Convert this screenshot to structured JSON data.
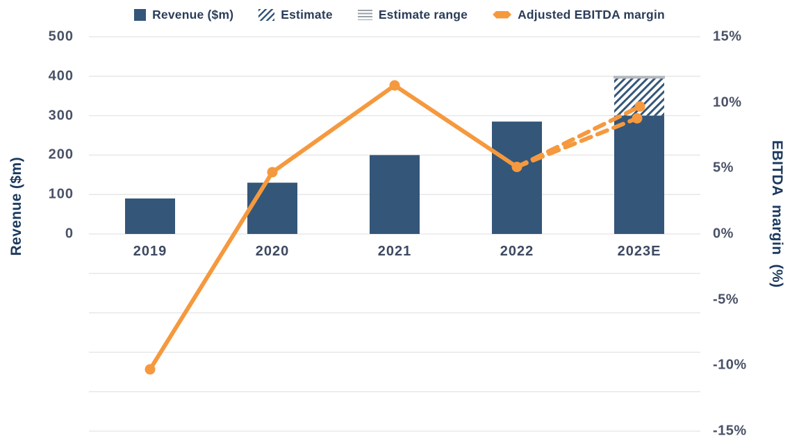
{
  "legend": {
    "items": [
      {
        "label": "Revenue ($m)",
        "swatch": "solid-square",
        "icon": "blue-square-icon"
      },
      {
        "label": "Estimate",
        "swatch": "diagonal-hatch",
        "icon": "hatch-swatch-icon"
      },
      {
        "label": "Estimate range",
        "swatch": "horizontal-lines",
        "icon": "hlines-swatch-icon"
      },
      {
        "label": "Adjusted EBITDA margin",
        "swatch": "orange-diamond",
        "icon": "diamond-marker-icon"
      }
    ]
  },
  "colors": {
    "bar_blue": "#345679",
    "line_orange": "#f5993e",
    "gridline": "#e4e4e6",
    "range_gray": "#b6b9be",
    "title_navy": "#1c3a5e"
  },
  "chart_data": {
    "type": "combo bar+line",
    "categories": [
      "2019",
      "2020",
      "2021",
      "2022",
      "2023E"
    ],
    "series": [
      {
        "name": "Revenue ($m)",
        "type": "bar",
        "axis": "left",
        "values": [
          90,
          130,
          200,
          285,
          300
        ]
      },
      {
        "name": "Estimate",
        "type": "bar-hatched",
        "axis": "left",
        "category": "2023E",
        "from": 300,
        "to": 395
      },
      {
        "name": "Estimate range",
        "type": "band",
        "axis": "left",
        "category": "2023E",
        "from": 395,
        "to": 401
      },
      {
        "name": "Adjusted EBITDA margin",
        "type": "line",
        "axis": "right",
        "values_pct": [
          -10.3,
          4.7,
          11.3,
          5.1,
          null
        ]
      },
      {
        "name": "Adjusted EBITDA margin estimate",
        "type": "dashed-line-range",
        "axis": "right",
        "from_index": 3,
        "from_pct": 5.1,
        "to_index": 4,
        "high_pct": 9.7,
        "low_pct": 8.8
      }
    ],
    "left_axis": {
      "title": "Revenue ($m)",
      "tick_values": [
        500,
        400,
        300,
        200,
        100,
        0
      ],
      "grid_max": 500,
      "grid_min": -500,
      "grid_step": 100
    },
    "right_axis": {
      "title": "EBITDA margin (%)",
      "tick_values": [
        15,
        10,
        5,
        0,
        -5,
        -10,
        -15
      ],
      "unit": "%"
    },
    "x_axis": {
      "categories": [
        "2019",
        "2020",
        "2021",
        "2022",
        "2023E"
      ]
    },
    "grid": true,
    "legend_position": "top"
  }
}
